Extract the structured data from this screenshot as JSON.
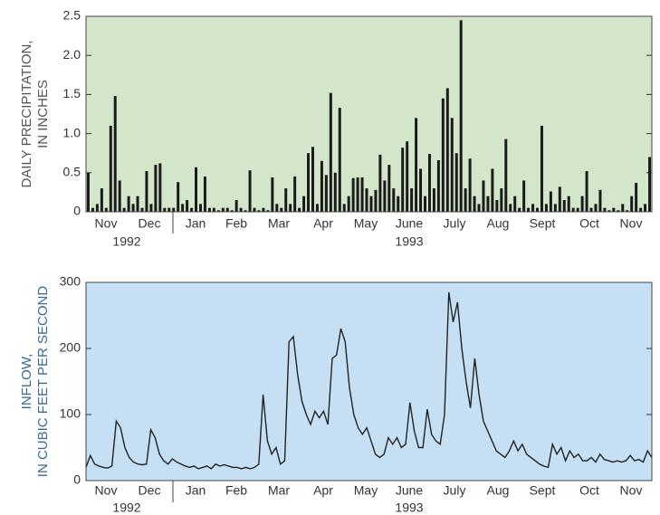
{
  "chart_data": [
    {
      "type": "bar",
      "ylabel": [
        "DAILY PRECIPITATION,",
        "IN INCHES"
      ],
      "color": "#1a1a1a",
      "background": "#d3e6c9",
      "ylim": [
        0,
        2.5
      ],
      "yticks": [
        0,
        0.5,
        {
          "value": 1,
          "label": "1.0"
        },
        1.5,
        {
          "value": 2,
          "label": "2.0"
        },
        2.5
      ],
      "month_labels": [
        "Nov",
        "Dec",
        "Jan",
        "Feb",
        "Mar",
        "Apr",
        "May",
        "June",
        "July",
        "Aug",
        "Sept",
        "Oct",
        "Nov"
      ],
      "year_labels": [
        "1992",
        "1993"
      ],
      "values": [
        0.5,
        0.05,
        0.1,
        0.3,
        0.05,
        1.1,
        1.48,
        0.4,
        0.05,
        0.2,
        0.1,
        0.2,
        0.05,
        0.52,
        0.1,
        0.6,
        0.62,
        0.05,
        0.05,
        0.05,
        0.38,
        0.1,
        0.15,
        0.05,
        0.57,
        0.1,
        0.45,
        0.05,
        0.05,
        0.02,
        0.05,
        0.05,
        0.02,
        0.15,
        0.05,
        0.02,
        0.53,
        0.05,
        0.02,
        0.05,
        0.02,
        0.44,
        0.1,
        0.05,
        0.3,
        0.1,
        0.45,
        0.05,
        0.2,
        0.75,
        0.83,
        0.1,
        0.65,
        0.47,
        1.52,
        0.5,
        1.33,
        0.1,
        0.2,
        0.43,
        0.44,
        0.44,
        0.3,
        0.2,
        0.28,
        0.73,
        0.4,
        0.6,
        0.3,
        0.2,
        0.82,
        0.9,
        0.3,
        1.2,
        0.55,
        0.2,
        0.74,
        0.3,
        0.66,
        1.45,
        1.58,
        1.2,
        0.75,
        2.45,
        0.3,
        0.68,
        0.2,
        0.1,
        0.4,
        0.2,
        0.55,
        0.15,
        0.3,
        0.93,
        0.1,
        0.2,
        0.05,
        0.4,
        0.05,
        0.1,
        0.05,
        1.1,
        0.1,
        0.26,
        0.1,
        0.32,
        0.15,
        0.2,
        0.05,
        0.05,
        0.2,
        0.52,
        0.05,
        0.1,
        0.28,
        0.05,
        0.02,
        0.05,
        0.02,
        0.1,
        0.02,
        0.2,
        0.37,
        0.05,
        0.1,
        0.7
      ]
    },
    {
      "type": "line",
      "ylabel": [
        "INFLOW,",
        "IN CUBIC FEET PER SECOND"
      ],
      "color": "#222222",
      "background": "#c5e0f4",
      "ylim": [
        0,
        300
      ],
      "yticks": [
        0,
        100,
        200,
        300
      ],
      "month_labels": [
        "Nov",
        "Dec",
        "Jan",
        "Feb",
        "Mar",
        "Apr",
        "May",
        "June",
        "July",
        "Aug",
        "Sept",
        "Oct",
        "Nov"
      ],
      "year_labels": [
        "1992",
        "1993"
      ],
      "values": [
        20,
        38,
        25,
        22,
        20,
        19,
        22,
        90,
        80,
        50,
        35,
        28,
        25,
        24,
        25,
        77,
        65,
        40,
        30,
        25,
        33,
        28,
        25,
        22,
        20,
        22,
        18,
        20,
        22,
        18,
        25,
        22,
        24,
        22,
        20,
        20,
        18,
        20,
        18,
        20,
        25,
        130,
        60,
        40,
        50,
        25,
        30,
        210,
        218,
        160,
        120,
        100,
        85,
        105,
        95,
        105,
        85,
        185,
        190,
        230,
        210,
        140,
        100,
        80,
        70,
        80,
        60,
        40,
        35,
        40,
        65,
        55,
        65,
        50,
        55,
        118,
        75,
        50,
        50,
        108,
        70,
        60,
        55,
        100,
        285,
        240,
        270,
        200,
        150,
        110,
        185,
        130,
        90,
        75,
        60,
        45,
        40,
        35,
        45,
        60,
        45,
        55,
        40,
        35,
        30,
        25,
        22,
        20,
        55,
        40,
        50,
        30,
        45,
        35,
        40,
        30,
        30,
        35,
        28,
        40,
        32,
        30,
        28,
        30,
        28,
        30,
        38,
        30,
        32,
        28,
        45,
        35
      ]
    }
  ]
}
